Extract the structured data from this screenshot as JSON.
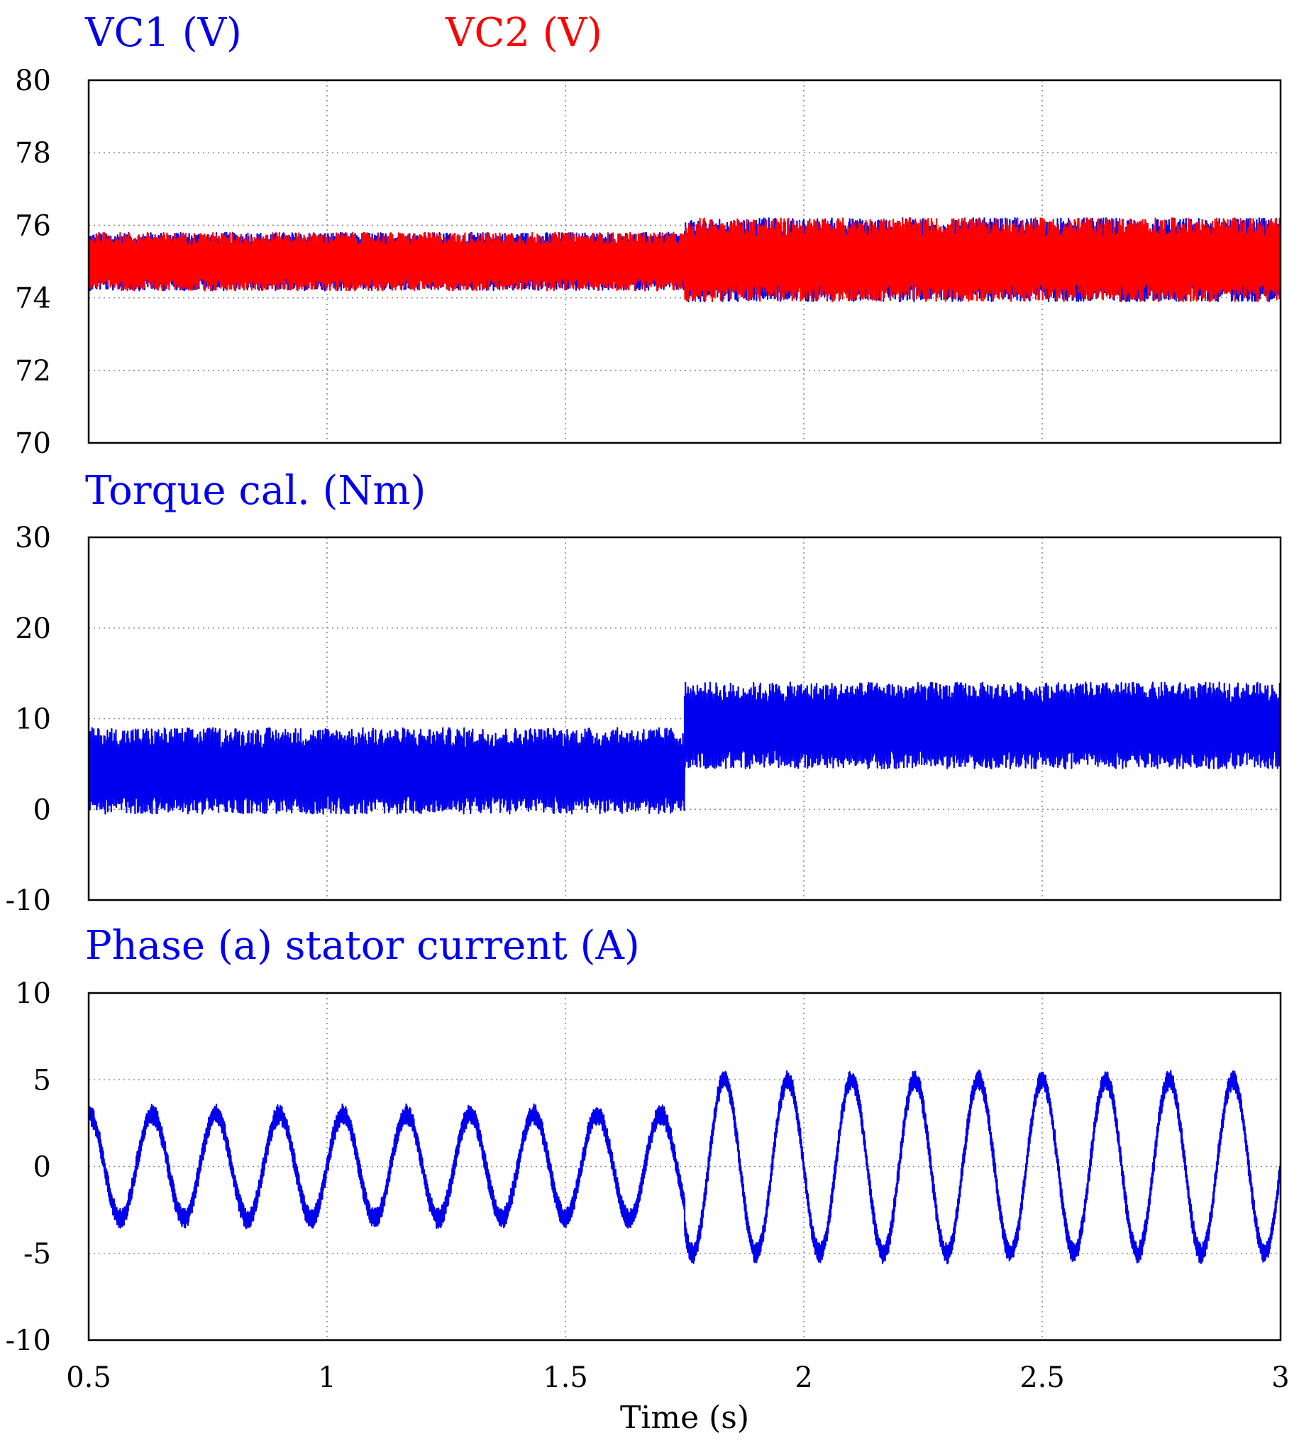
{
  "colors": {
    "blue": "#0000ee",
    "red": "#ff0000"
  },
  "chart_data": [
    {
      "type": "line",
      "title_parts": [
        {
          "text": "VC1 (V)",
          "color": "#0000ee"
        },
        {
          "text": "VC2 (V)",
          "color": "#ff0000"
        }
      ],
      "xlim": [
        0.5,
        3
      ],
      "ylim": [
        70,
        80
      ],
      "yticks": [
        70,
        72,
        74,
        76,
        78,
        80
      ],
      "xticks": [
        0.5,
        1,
        1.5,
        2,
        2.5,
        3
      ],
      "grid": true,
      "series": [
        {
          "name": "VC1 (V)",
          "color": "#0000ee",
          "segments": [
            {
              "x_start": 0.5,
              "x_end": 1.75,
              "mean": 75.0,
              "min": 74.2,
              "max": 75.8
            },
            {
              "x_start": 1.75,
              "x_end": 3.0,
              "mean": 75.0,
              "min": 73.9,
              "max": 76.2
            }
          ]
        },
        {
          "name": "VC2 (V)",
          "color": "#ff0000",
          "segments": [
            {
              "x_start": 0.5,
              "x_end": 1.75,
              "mean": 75.0,
              "min": 74.2,
              "max": 75.8
            },
            {
              "x_start": 1.75,
              "x_end": 3.0,
              "mean": 75.0,
              "min": 73.9,
              "max": 76.2
            }
          ]
        }
      ]
    },
    {
      "type": "line",
      "title_parts": [
        {
          "text": "Torque cal. (Nm)",
          "color": "#0000ee"
        }
      ],
      "xlim": [
        0.5,
        3
      ],
      "ylim": [
        -10,
        30
      ],
      "yticks": [
        -10,
        0,
        10,
        20,
        30
      ],
      "xticks": [
        0.5,
        1,
        1.5,
        2,
        2.5,
        3
      ],
      "grid": true,
      "series": [
        {
          "name": "Torque cal. (Nm)",
          "color": "#0000ee",
          "segments": [
            {
              "x_start": 0.5,
              "x_end": 1.75,
              "mean": 4.0,
              "min": -0.5,
              "max": 9.0
            },
            {
              "x_start": 1.75,
              "x_end": 3.0,
              "mean": 9.0,
              "min": 4.5,
              "max": 14.0
            }
          ]
        }
      ]
    },
    {
      "type": "line",
      "title_parts": [
        {
          "text": "Phase (a) stator current (A)",
          "color": "#0000ee"
        }
      ],
      "xlim": [
        0.5,
        3
      ],
      "ylim": [
        -10,
        10
      ],
      "yticks": [
        -10,
        -5,
        0,
        5,
        10
      ],
      "xticks": [
        0.5,
        1,
        1.5,
        2,
        2.5,
        3
      ],
      "xtick_labels": [
        "0.5",
        "1",
        "1.5",
        "2",
        "2.5",
        "3"
      ],
      "xlabel": "Time (s)",
      "grid": true,
      "series": [
        {
          "name": "Phase (a) stator current (A)",
          "color": "#0000ee",
          "segments": [
            {
              "x_start": 0.5,
              "x_end": 1.75,
              "offset": 0.0,
              "amplitude": 3.0,
              "frequency_hz": 7.5,
              "ripple": 0.6
            },
            {
              "x_start": 1.75,
              "x_end": 3.0,
              "offset": 0.0,
              "amplitude": 5.0,
              "frequency_hz": 7.5,
              "ripple": 0.6
            }
          ]
        }
      ]
    }
  ]
}
